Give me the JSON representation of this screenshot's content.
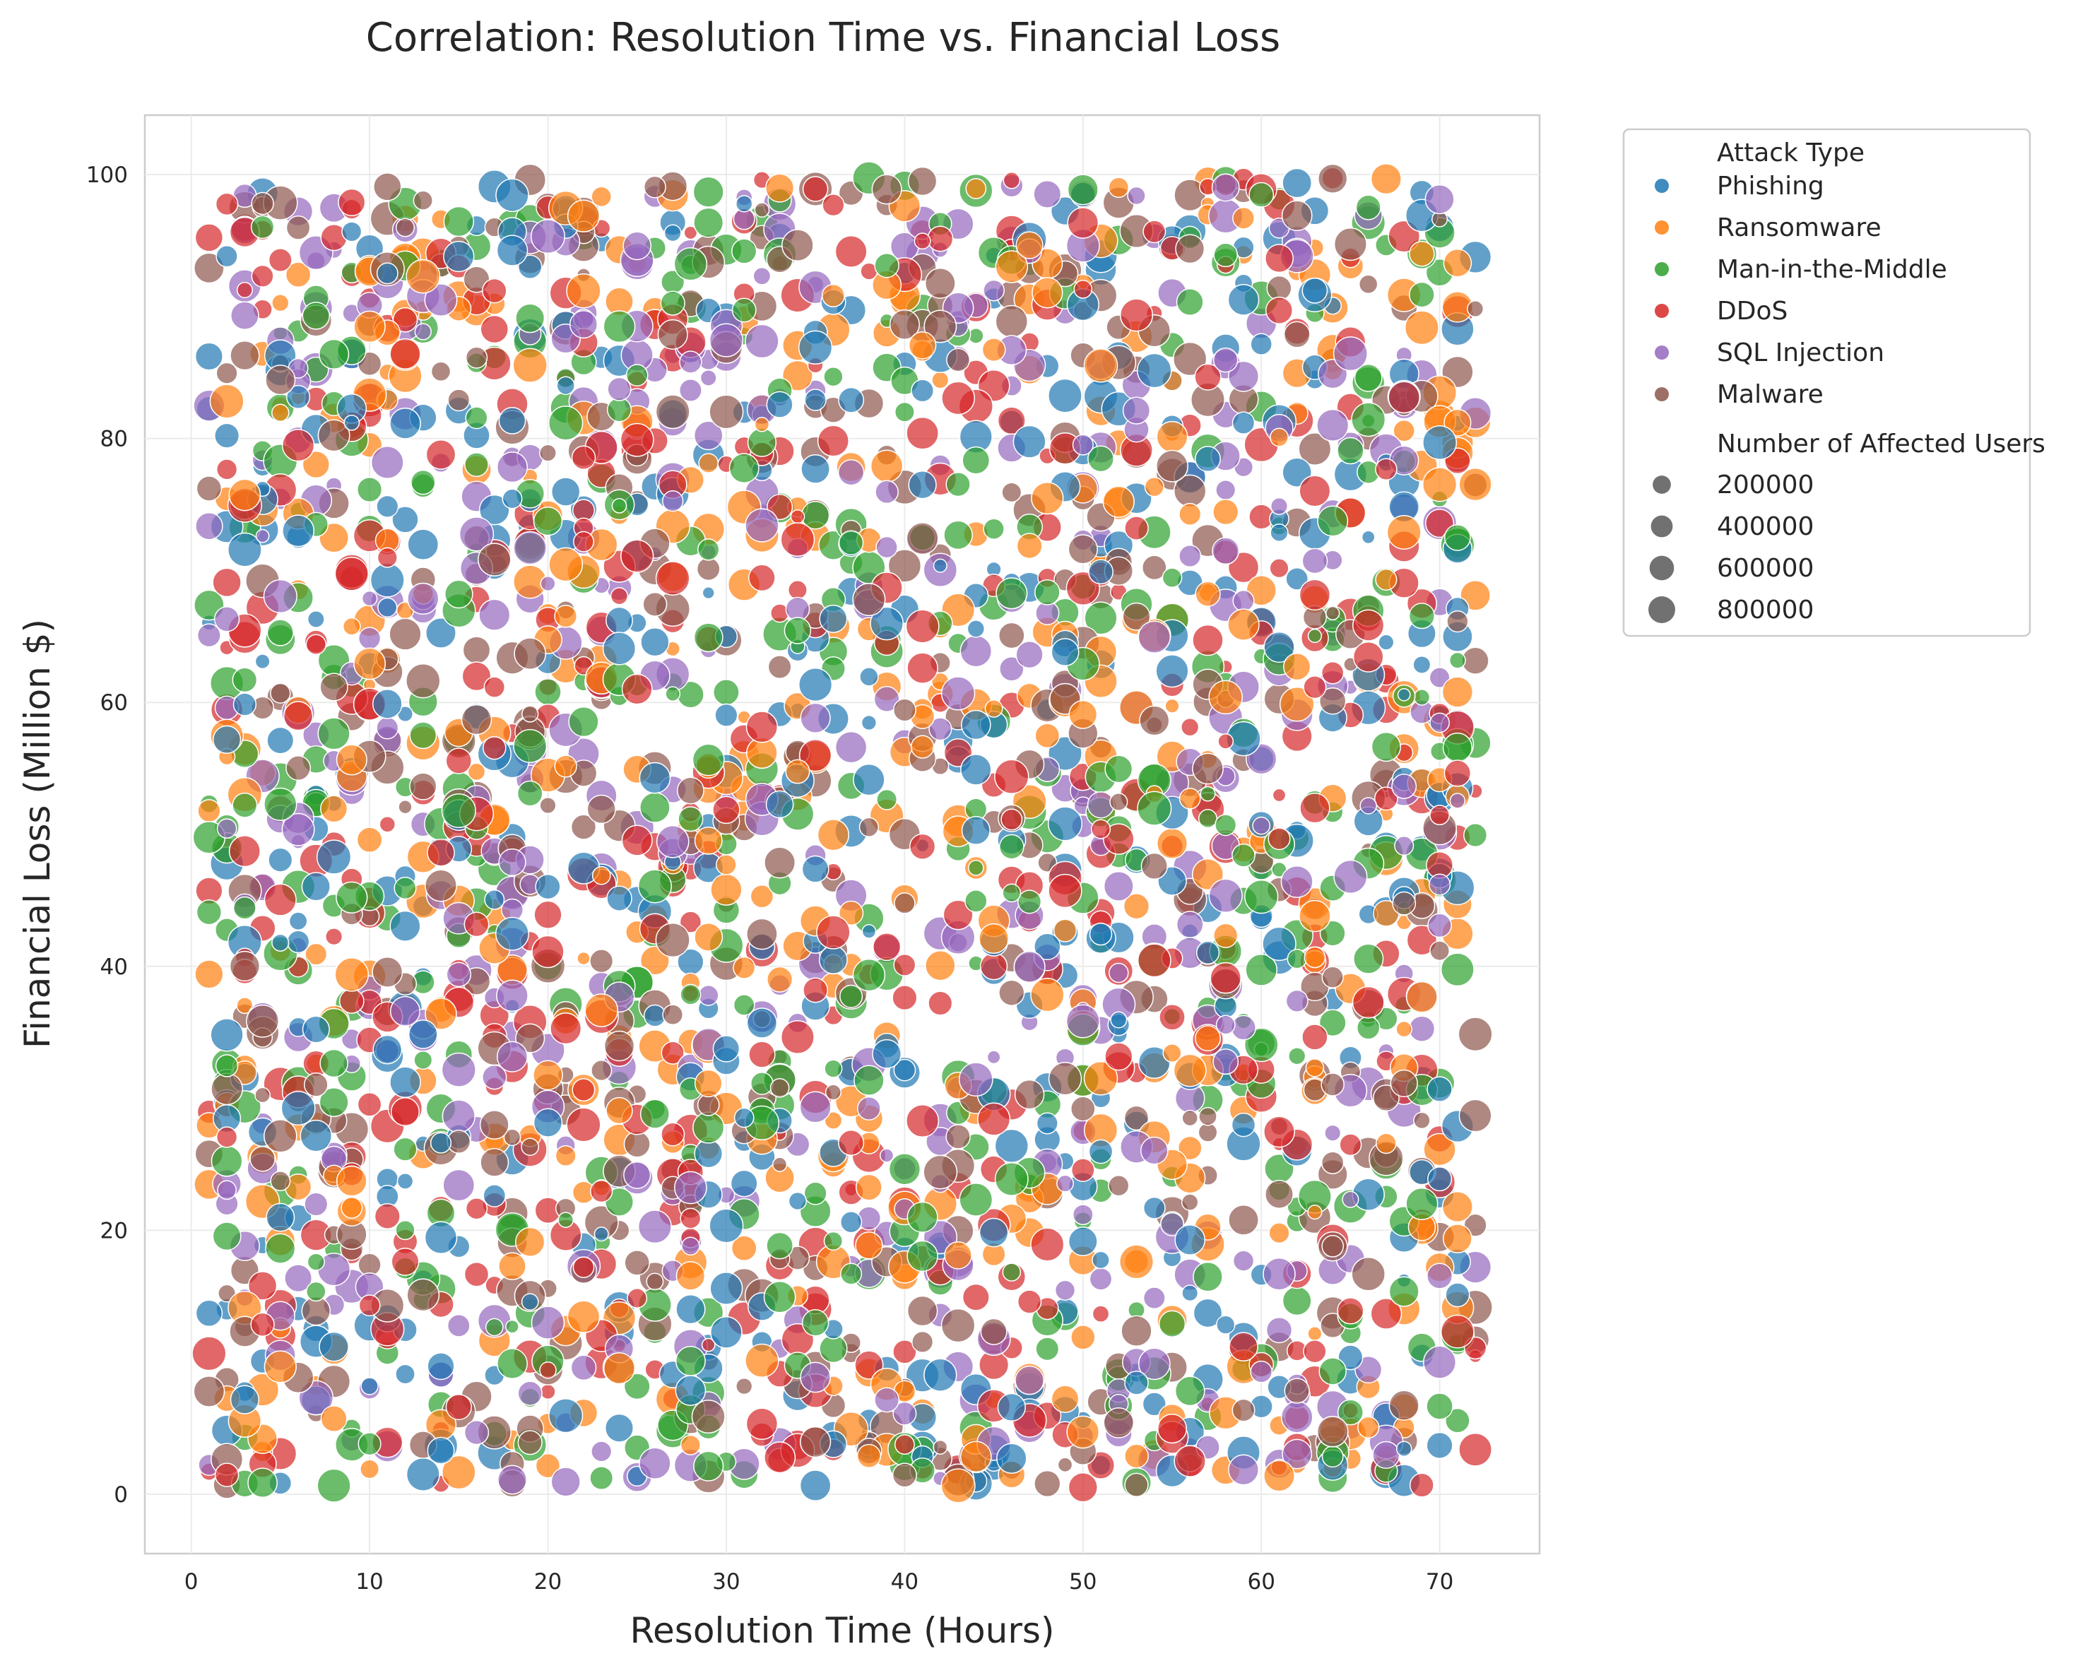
{
  "chart_data": {
    "type": "scatter",
    "title": "Correlation: Resolution Time vs. Financial Loss",
    "xlabel": "Resolution Time (Hours)",
    "ylabel": "Financial Loss (Million $)",
    "xlim": [
      -2.6,
      75.6
    ],
    "ylim": [
      -4.5,
      104.5
    ],
    "x_ticks": [
      0,
      10,
      20,
      30,
      40,
      50,
      60,
      70
    ],
    "y_ticks": [
      0,
      20,
      40,
      60,
      80,
      100
    ],
    "grid": true,
    "legend": {
      "placement": "outside-top-right",
      "hue_title": "Attack Type",
      "size_title": "Number of Affected Users",
      "size_entries": [
        200000,
        400000,
        600000,
        800000
      ]
    },
    "series": [
      {
        "name": "Phishing",
        "color": "#1f77b4"
      },
      {
        "name": "Ransomware",
        "color": "#ff7f0e"
      },
      {
        "name": "Man-in-the-Middle",
        "color": "#2ca02c"
      },
      {
        "name": "DDoS",
        "color": "#d62728"
      },
      {
        "name": "SQL Injection",
        "color": "#9467bd"
      },
      {
        "name": "Malware",
        "color": "#8c564b"
      }
    ],
    "points": {
      "count_per_series": 500,
      "x_domain": [
        1,
        72
      ],
      "y_domain": [
        0.5,
        100
      ],
      "users_domain": [
        500,
        1000000
      ],
      "note_random": "dense overlapping cloud of points with no visible correlation"
    }
  }
}
